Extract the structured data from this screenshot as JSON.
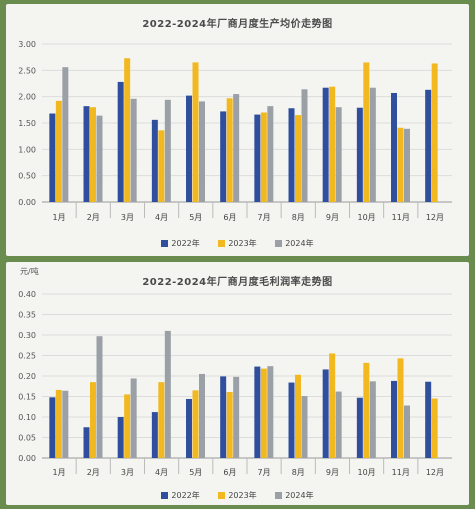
{
  "chart_data": [
    {
      "type": "bar",
      "title": "2022-2024年厂商月度生产均价走势图",
      "unit": "",
      "categories": [
        "1月",
        "2月",
        "3月",
        "4月",
        "5月",
        "6月",
        "7月",
        "8月",
        "9月",
        "10月",
        "11月",
        "12月"
      ],
      "yticks": [
        "0.00",
        "0.50",
        "1.00",
        "1.50",
        "2.00",
        "2.50",
        "3.00"
      ],
      "ylim": [
        0,
        3
      ],
      "series": [
        {
          "name": "2022年",
          "color": "#2f4f9e",
          "values": [
            1.68,
            1.82,
            2.28,
            1.56,
            2.02,
            1.72,
            1.66,
            1.78,
            2.17,
            1.79,
            2.07,
            2.13
          ]
        },
        {
          "name": "2023年",
          "color": "#f2b81f",
          "values": [
            1.92,
            1.8,
            2.73,
            1.36,
            2.65,
            1.97,
            1.7,
            1.65,
            2.19,
            2.65,
            1.41,
            2.63
          ]
        },
        {
          "name": "2024年",
          "color": "#9aa0a6",
          "values": [
            2.56,
            1.64,
            1.96,
            1.94,
            1.91,
            2.05,
            1.82,
            2.14,
            1.8,
            2.17,
            1.39,
            null
          ]
        }
      ]
    },
    {
      "type": "bar",
      "title": "2022-2024年厂商月度毛利润率走势图",
      "unit": "元/吨",
      "categories": [
        "1月",
        "2月",
        "3月",
        "4月",
        "5月",
        "6月",
        "7月",
        "8月",
        "9月",
        "10月",
        "11月",
        "12月"
      ],
      "yticks": [
        "0.00",
        "0.05",
        "0.10",
        "0.15",
        "0.20",
        "0.25",
        "0.30",
        "0.35",
        "0.40"
      ],
      "ylim": [
        0,
        0.4
      ],
      "series": [
        {
          "name": "2022年",
          "color": "#2f4f9e",
          "values": [
            0.148,
            0.075,
            0.1,
            0.112,
            0.144,
            0.199,
            0.223,
            0.184,
            0.216,
            0.147,
            0.188,
            0.186
          ]
        },
        {
          "name": "2023年",
          "color": "#f2b81f",
          "values": [
            0.166,
            0.185,
            0.155,
            0.185,
            0.165,
            0.161,
            0.218,
            0.203,
            0.255,
            0.232,
            0.243,
            0.145
          ]
        },
        {
          "name": "2024年",
          "color": "#9aa0a6",
          "values": [
            0.164,
            0.297,
            0.194,
            0.31,
            0.205,
            0.198,
            0.224,
            0.151,
            0.162,
            0.187,
            0.128,
            null
          ]
        }
      ]
    }
  ]
}
